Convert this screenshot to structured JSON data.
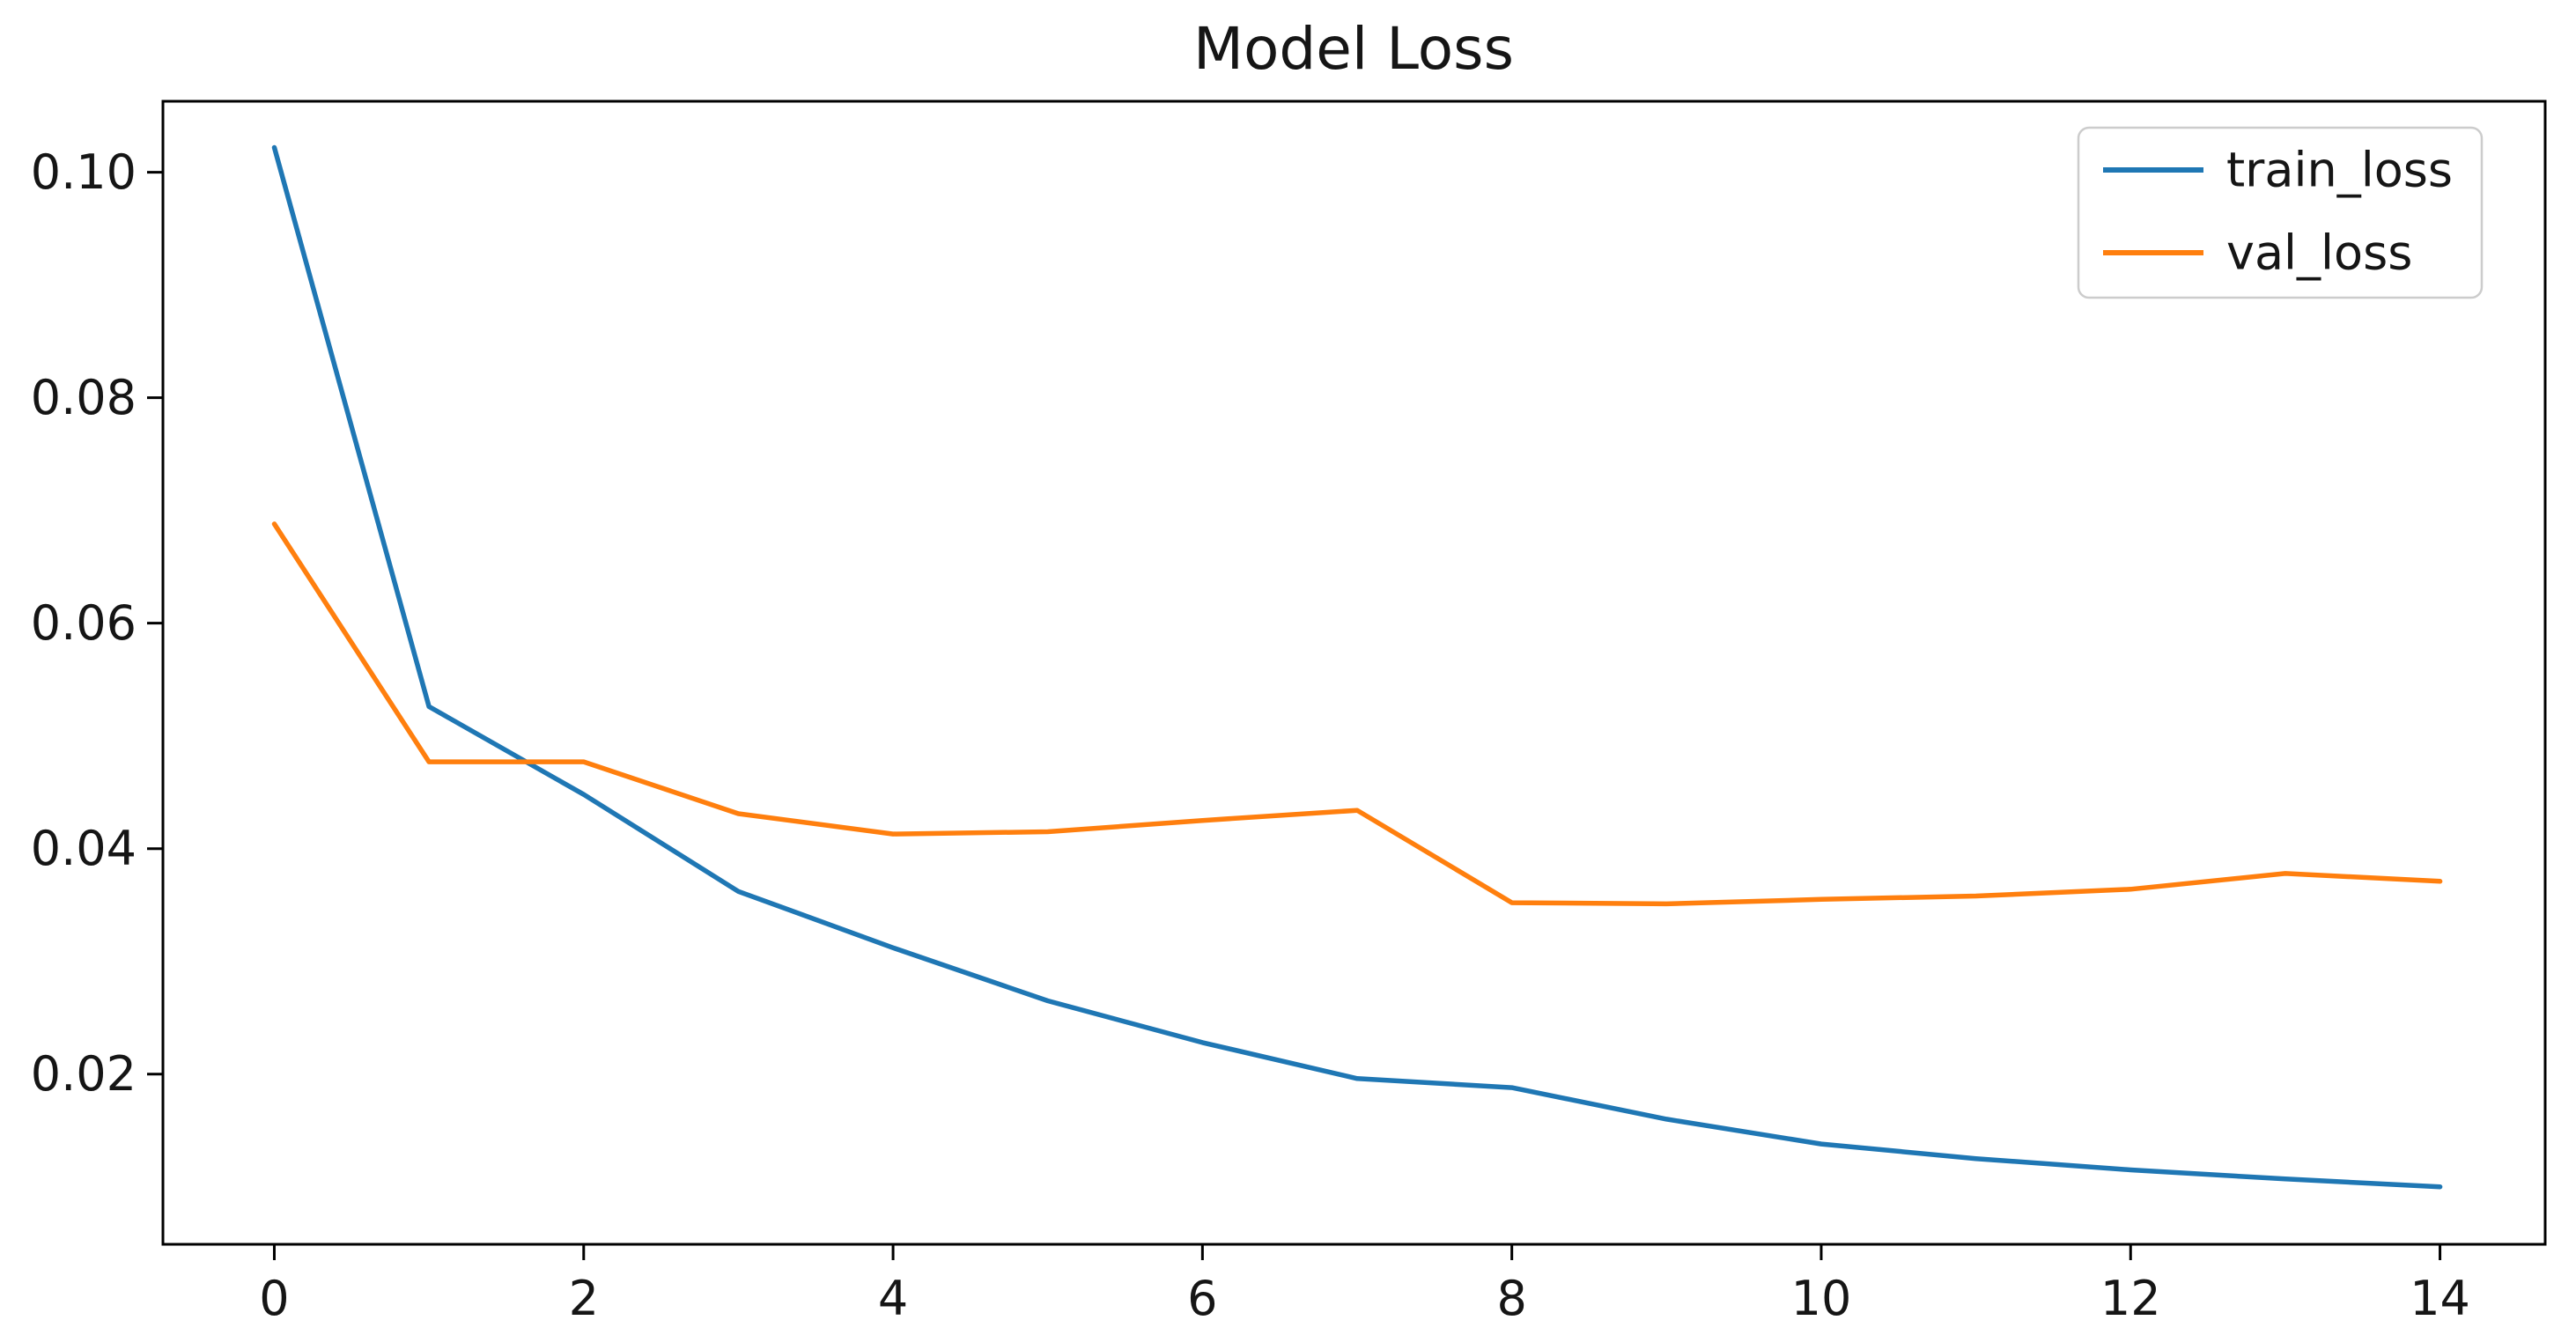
{
  "chart_data": {
    "type": "line",
    "title": "Model Loss",
    "xlabel": "",
    "ylabel": "",
    "x": [
      0,
      1,
      2,
      3,
      4,
      5,
      6,
      7,
      8,
      9,
      10,
      11,
      12,
      13,
      14
    ],
    "series": [
      {
        "name": "train_loss",
        "color": "#1f77b4",
        "values": [
          0.1022,
          0.0526,
          0.0448,
          0.0362,
          0.0312,
          0.0265,
          0.0228,
          0.0196,
          0.0188,
          0.016,
          0.0138,
          0.0125,
          0.0115,
          0.0107,
          0.01
        ]
      },
      {
        "name": "val_loss",
        "color": "#ff7f0e",
        "values": [
          0.0688,
          0.0477,
          0.0477,
          0.0431,
          0.0413,
          0.0415,
          0.0425,
          0.0434,
          0.0352,
          0.0351,
          0.0355,
          0.0358,
          0.0364,
          0.0378,
          0.0371
        ]
      }
    ],
    "x_ticks": [
      0,
      2,
      4,
      6,
      8,
      10,
      12,
      14
    ],
    "x_tick_labels": [
      "0",
      "2",
      "4",
      "6",
      "8",
      "10",
      "12",
      "14"
    ],
    "y_ticks": [
      0.02,
      0.04,
      0.06,
      0.08,
      0.1
    ],
    "y_tick_labels": [
      "0.02",
      "0.04",
      "0.06",
      "0.08",
      "0.10"
    ],
    "xlim": [
      -0.72,
      14.68
    ],
    "ylim": [
      0.0049,
      0.1063
    ],
    "grid": false,
    "legend_position": "upper right",
    "legend_entries": [
      "train_loss",
      "val_loss"
    ],
    "axis_color": "#000000",
    "background_color": "#ffffff"
  }
}
